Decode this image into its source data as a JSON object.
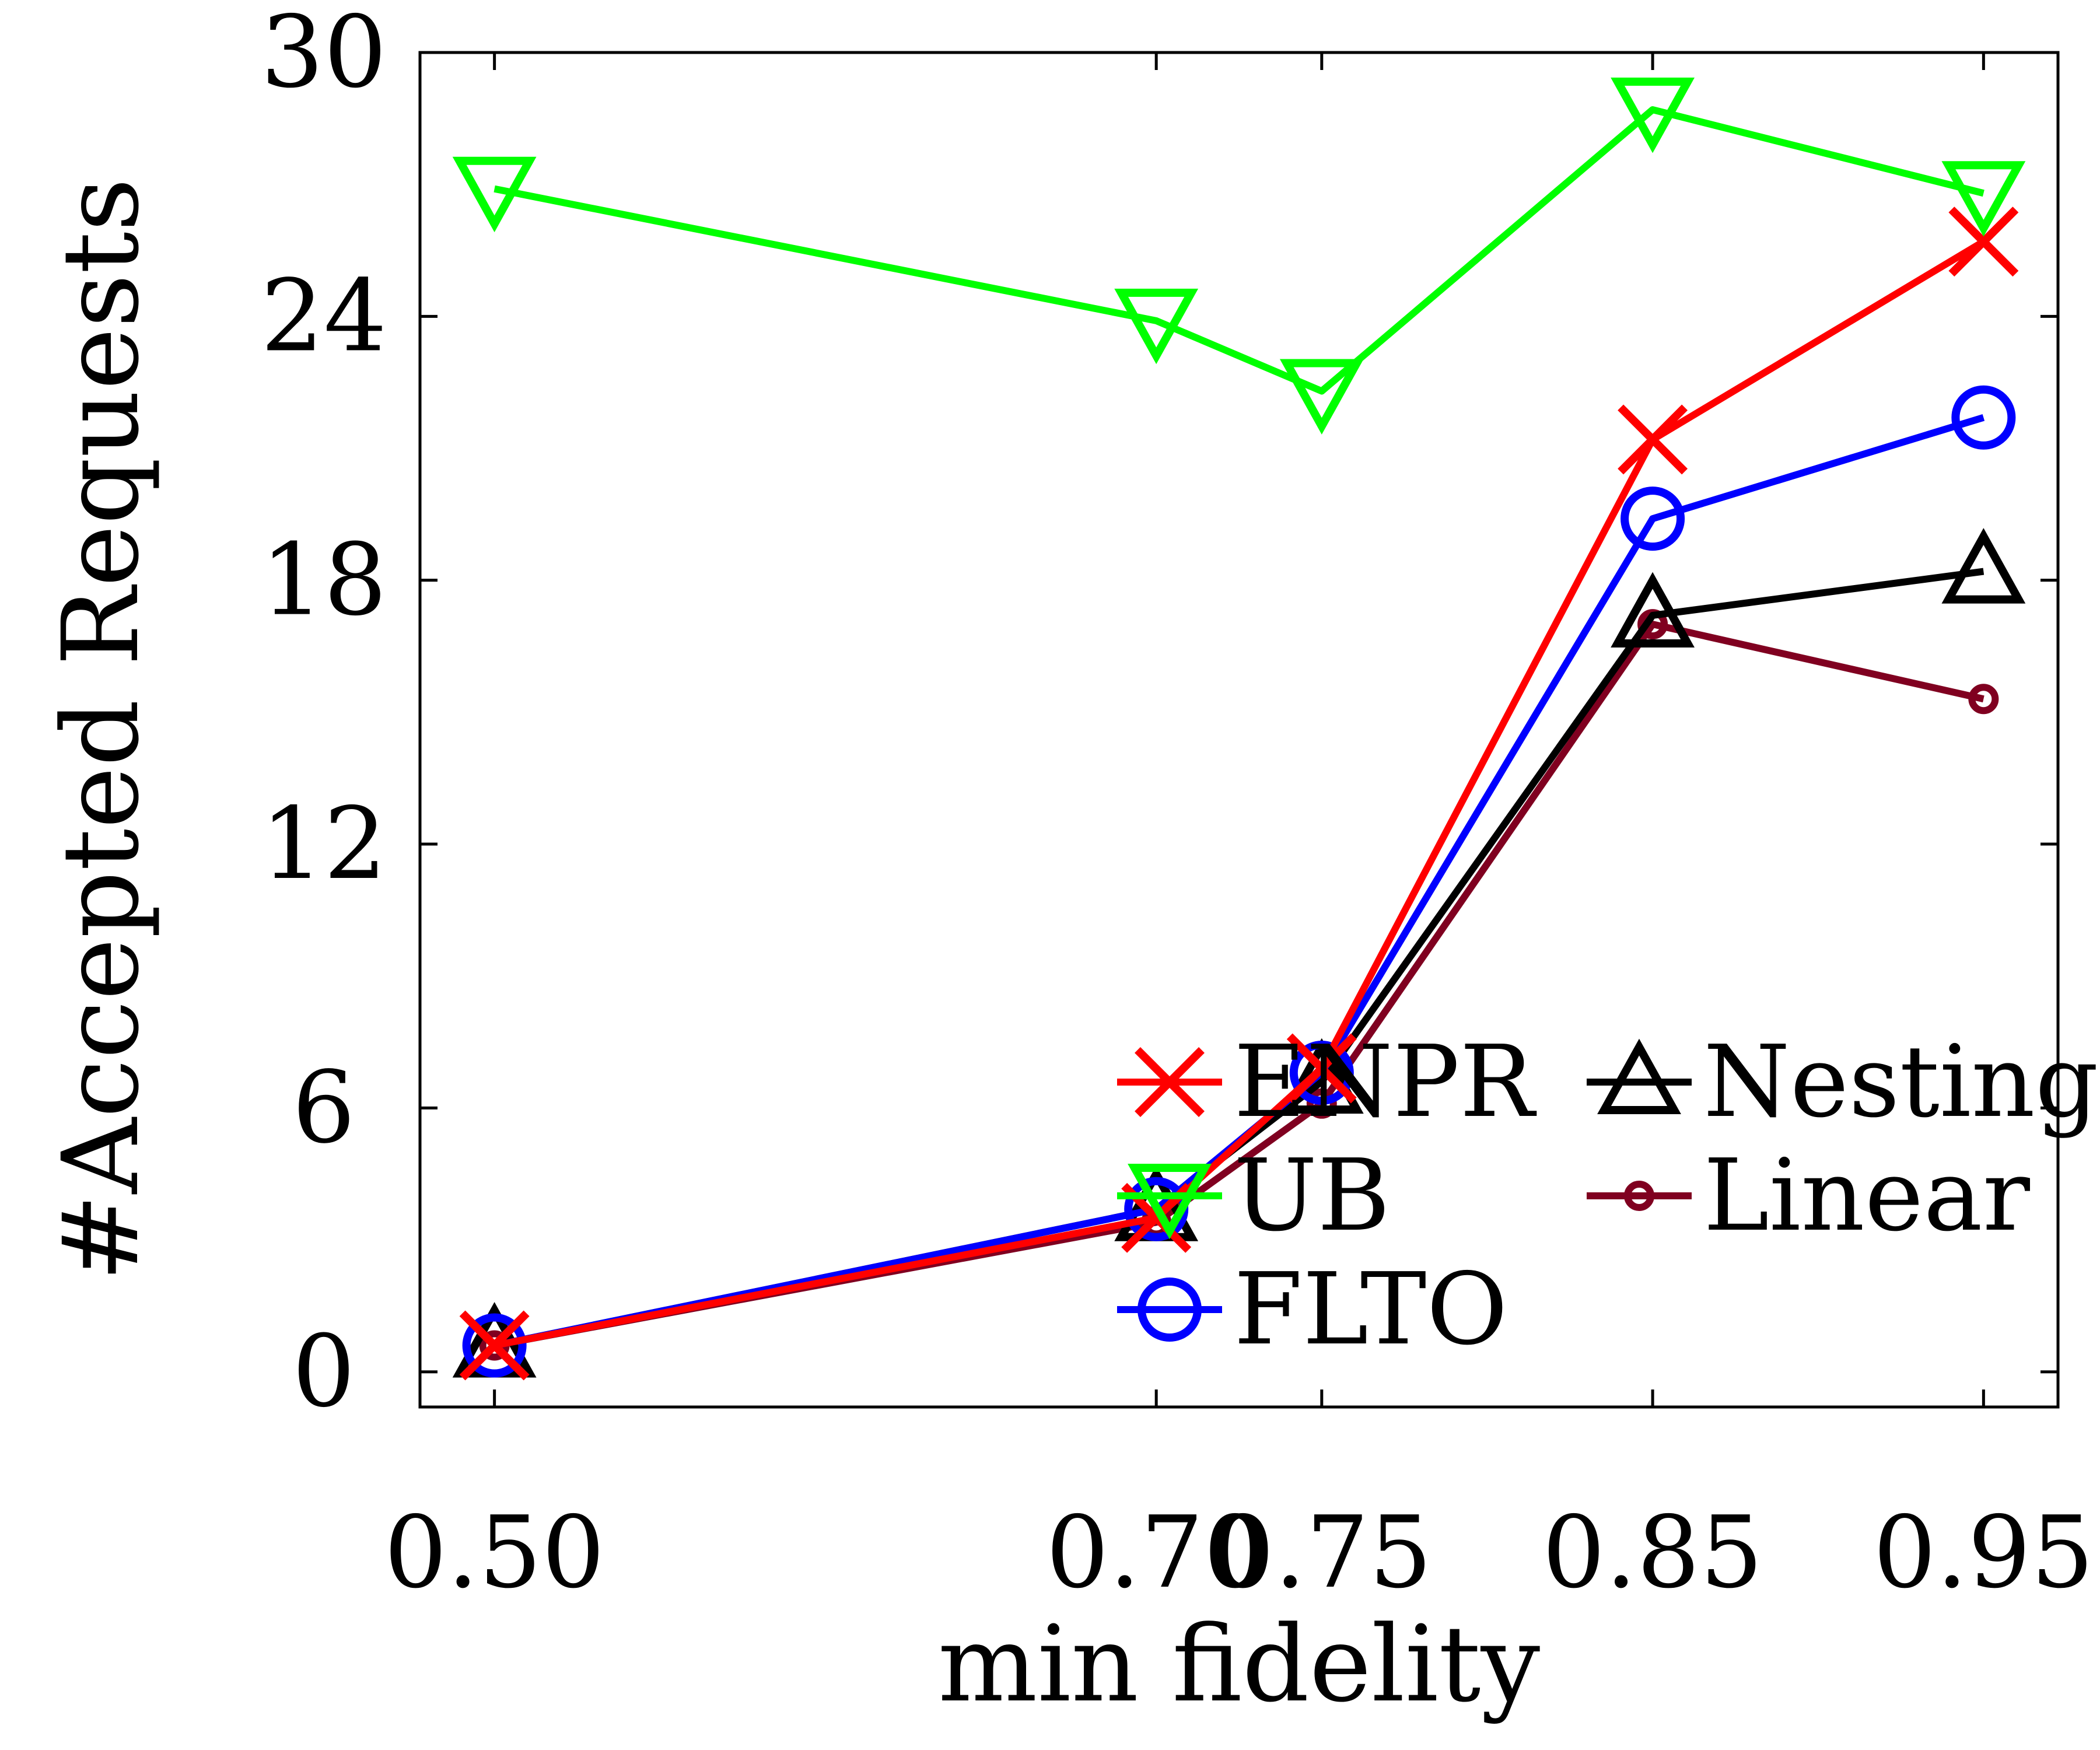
{
  "chart_data": {
    "type": "line",
    "title": "",
    "xlabel": "min fidelity",
    "ylabel": "#Accepted Requests",
    "x": [
      0.5,
      0.7,
      0.75,
      0.85,
      0.95
    ],
    "x_tick_labels": [
      "0.50",
      "0.70",
      "0.75",
      "0.85",
      "0.95"
    ],
    "y_ticks": [
      0,
      6,
      12,
      18,
      24,
      30
    ],
    "y_tick_labels": [
      "0",
      "6",
      "12",
      "18",
      "24",
      "30"
    ],
    "xlim": [
      0.4775,
      0.9725
    ],
    "ylim": [
      -0.8,
      30
    ],
    "grid": false,
    "legend_placement": "bottom-center",
    "series": [
      {
        "name": "Linear",
        "color": "#800020",
        "marker": "small-circle",
        "values": [
          0.6,
          3.4,
          6.1,
          17.0,
          15.3
        ]
      },
      {
        "name": "Nesting",
        "color": "#000000",
        "marker": "triangle-up",
        "values": [
          0.6,
          3.7,
          6.6,
          17.2,
          18.2
        ]
      },
      {
        "name": "FLTO",
        "color": "#0000ff",
        "marker": "circle",
        "values": [
          0.6,
          3.7,
          6.8,
          19.4,
          21.7
        ]
      },
      {
        "name": "ENPR",
        "color": "#ff0000",
        "marker": "x",
        "values": [
          0.6,
          3.5,
          6.9,
          21.2,
          25.7
        ]
      },
      {
        "name": "UB",
        "color": "#00ff00",
        "marker": "triangle-down",
        "values": [
          26.9,
          23.9,
          22.3,
          28.7,
          26.8
        ]
      }
    ],
    "legend_order": [
      "ENPR",
      "UB",
      "FLTO",
      "Nesting",
      "Linear"
    ]
  }
}
